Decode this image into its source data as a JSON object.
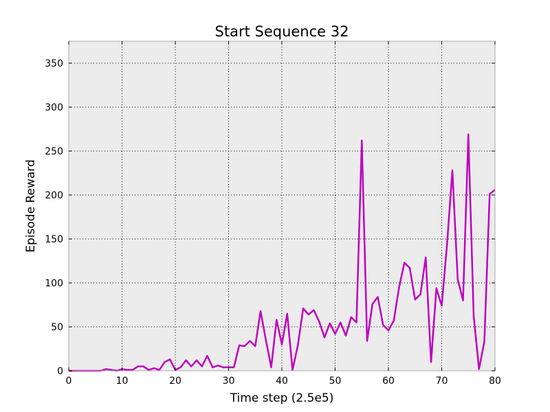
{
  "chart_data": {
    "type": "line",
    "title": "Start Sequence 32",
    "xlabel": "Time step (2.5e5)",
    "ylabel": "Episode Reward",
    "xlim": [
      0,
      80
    ],
    "ylim": [
      0,
      375
    ],
    "xticks": [
      0,
      10,
      20,
      30,
      40,
      50,
      60,
      70,
      80
    ],
    "yticks": [
      0,
      50,
      100,
      150,
      200,
      250,
      300,
      350
    ],
    "grid": true,
    "background_color": "#ececec",
    "series": [
      {
        "color": "#bf00bf",
        "x": [
          0,
          1,
          2,
          3,
          4,
          5,
          6,
          7,
          8,
          9,
          10,
          11,
          12,
          13,
          14,
          15,
          16,
          17,
          18,
          19,
          20,
          21,
          22,
          23,
          24,
          25,
          26,
          27,
          28,
          29,
          30,
          31,
          32,
          33,
          34,
          35,
          36,
          37,
          38,
          39,
          40,
          41,
          42,
          43,
          44,
          45,
          46,
          47,
          48,
          49,
          50,
          51,
          52,
          53,
          54,
          55,
          56,
          57,
          58,
          59,
          60,
          61,
          62,
          63,
          64,
          65,
          66,
          67,
          68,
          69,
          70,
          71,
          72,
          73,
          74,
          75,
          76,
          77,
          78,
          79,
          80
        ],
        "values": [
          0,
          0,
          0,
          0,
          0,
          0,
          0,
          2,
          1,
          0,
          2,
          1,
          1,
          5,
          5,
          1,
          3,
          1,
          10,
          13,
          1,
          4,
          12,
          5,
          12,
          5,
          17,
          4,
          6,
          4,
          4,
          4,
          29,
          28,
          34,
          28,
          68,
          35,
          4,
          58,
          30,
          65,
          1,
          29,
          71,
          64,
          69,
          56,
          38,
          54,
          42,
          55,
          40,
          61,
          55,
          262,
          34,
          76,
          84,
          52,
          46,
          57,
          95,
          123,
          117,
          81,
          87,
          129,
          10,
          94,
          74,
          144,
          228,
          104,
          80,
          269,
          62,
          2,
          33,
          201,
          206
        ]
      }
    ]
  }
}
